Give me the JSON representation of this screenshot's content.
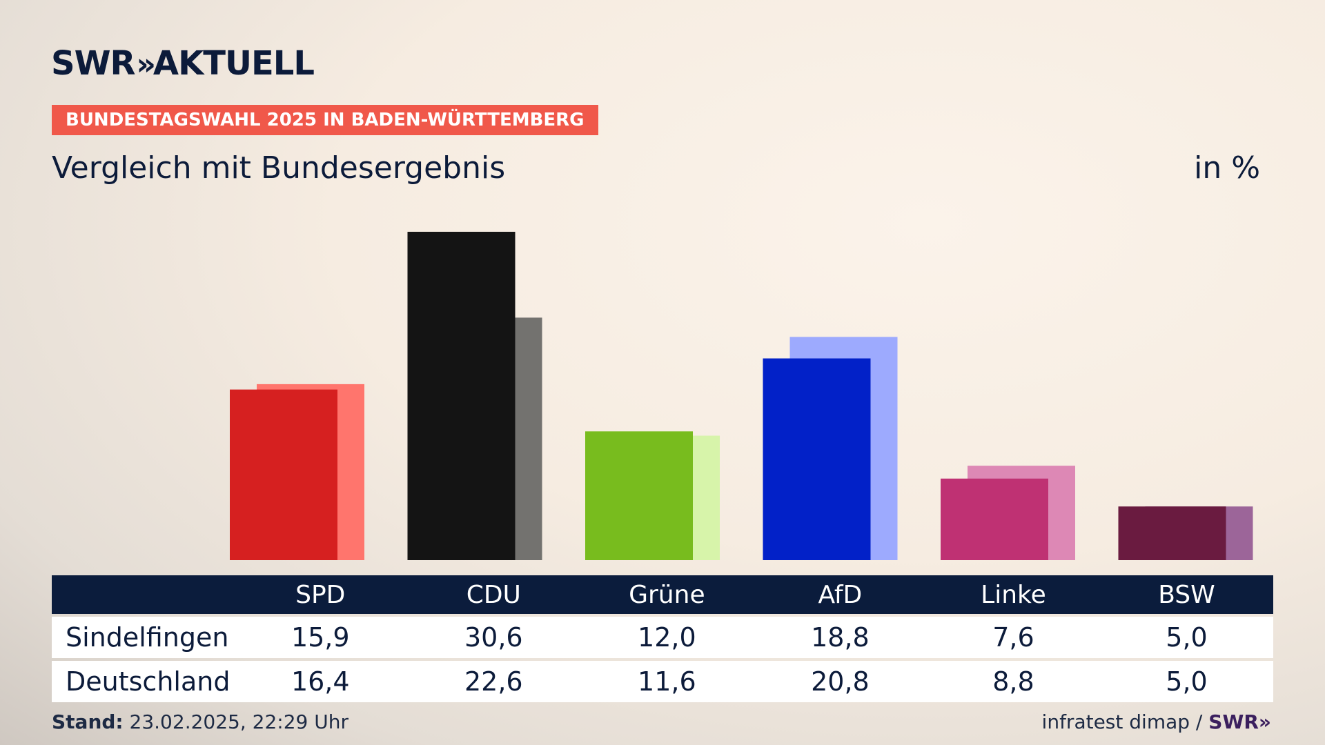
{
  "brand": {
    "name": "SWR",
    "chevrons": "»",
    "product": "AKTUELL"
  },
  "kicker": "BUNDESTAGSWAHL 2025 IN BADEN-WÜRTTEMBERG",
  "title": "Vergleich mit Bundesergebnis",
  "unit": "in %",
  "chart_data": {
    "type": "bar",
    "title": "Vergleich mit Bundesergebnis",
    "ylabel": "in %",
    "ylim": [
      0,
      30.6
    ],
    "categories": [
      "SPD",
      "CDU",
      "Grüne",
      "AfD",
      "Linke",
      "BSW"
    ],
    "series": [
      {
        "name": "Sindelfingen",
        "values": [
          15.9,
          30.6,
          12.0,
          18.8,
          7.6,
          5.0
        ],
        "display": [
          "15,9",
          "30,6",
          "12,0",
          "18,8",
          "7,6",
          "5,0"
        ]
      },
      {
        "name": "Deutschland",
        "values": [
          16.4,
          22.6,
          11.6,
          20.8,
          8.8,
          5.0
        ],
        "display": [
          "16,4",
          "22,6",
          "11,6",
          "20,8",
          "8,8",
          "5,0"
        ]
      }
    ],
    "colors_primary": [
      "#d62020",
      "#141414",
      "#78bc1e",
      "#0221c8",
      "#bf3173",
      "#6a1b40"
    ],
    "colors_secondary": [
      "#ff756d",
      "#73726f",
      "#d7f4aa",
      "#9daafe",
      "#dd88b5",
      "#9c6599"
    ],
    "grid": false,
    "legend": "table-below"
  },
  "footer": {
    "stand_label": "Stand:",
    "stand_value": "23.02.2025, 22:29 Uhr",
    "source": "infratest dimap /",
    "source_brand": "SWR"
  }
}
